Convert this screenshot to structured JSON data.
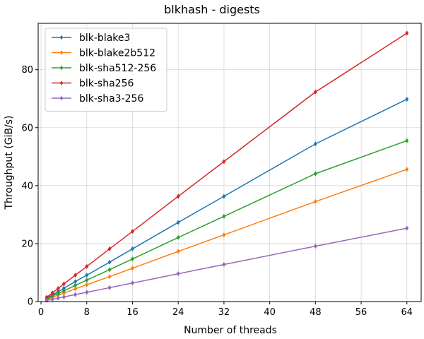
{
  "chart_data": {
    "type": "line",
    "title": "blkhash - digests",
    "xlabel": "Number of threads",
    "ylabel": "Throughput (GiB/s)",
    "xlim": [
      -0.5,
      66.5
    ],
    "ylim": [
      0,
      96
    ],
    "xticks": [
      0,
      8,
      16,
      24,
      32,
      40,
      48,
      56,
      64
    ],
    "yticks": [
      0,
      20,
      40,
      60,
      80
    ],
    "grid": true,
    "legend_position": "top-left",
    "x": [
      1,
      2,
      3,
      4,
      6,
      8,
      12,
      16,
      24,
      32,
      48,
      64
    ],
    "series": [
      {
        "name": "blk-blake3",
        "color": "#1f77b4",
        "values": [
          1.2,
          2.3,
          3.4,
          4.6,
          6.9,
          9.1,
          13.6,
          18.2,
          27.3,
          36.3,
          54.4,
          69.8
        ]
      },
      {
        "name": "blk-blake2b512",
        "color": "#ff7f0e",
        "values": [
          0.7,
          1.5,
          2.2,
          2.9,
          4.4,
          5.8,
          8.6,
          11.5,
          17.3,
          23.0,
          34.5,
          45.6
        ]
      },
      {
        "name": "blk-sha512-256",
        "color": "#2ca02c",
        "values": [
          0.9,
          1.9,
          2.8,
          3.7,
          5.6,
          7.4,
          11.0,
          14.7,
          22.1,
          29.4,
          44.1,
          55.5
        ]
      },
      {
        "name": "blk-sha256",
        "color": "#d62728",
        "values": [
          1.5,
          3.0,
          4.5,
          6.1,
          9.1,
          12.1,
          18.2,
          24.2,
          36.3,
          48.3,
          72.3,
          92.6
        ]
      },
      {
        "name": "blk-sha3-256",
        "color": "#9467bd",
        "values": [
          0.4,
          0.8,
          1.2,
          1.6,
          2.4,
          3.2,
          4.8,
          6.4,
          9.6,
          12.8,
          19.1,
          25.3
        ]
      }
    ]
  }
}
